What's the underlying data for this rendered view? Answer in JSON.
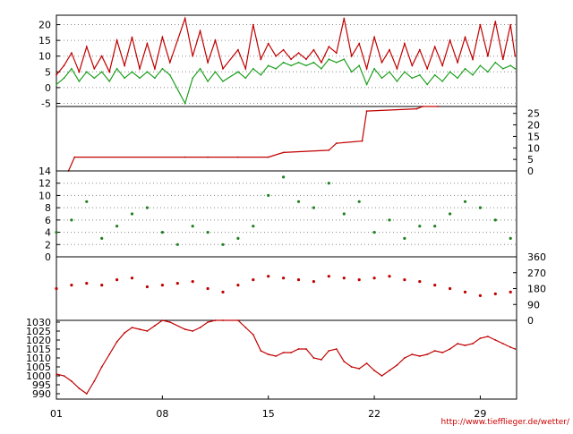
{
  "chart_data": [
    {
      "type": "line",
      "title": "",
      "xlabel": "",
      "ylabel": "",
      "ylim": [
        -6,
        23
      ],
      "yticks": [
        -5,
        0,
        5,
        10,
        15,
        20
      ],
      "yaxis_side": "left",
      "grid": "horizontal dotted",
      "series": [
        {
          "color": "#c00000",
          "x": [
            1,
            1.5,
            2,
            2.5,
            3,
            3.5,
            4,
            4.5,
            5,
            5.5,
            6,
            6.5,
            7,
            7.5,
            8,
            8.5,
            9.5,
            10,
            10.5,
            11,
            11.5,
            12,
            13,
            13.5,
            14,
            14.5,
            15,
            15.5,
            16,
            16.5,
            17,
            17.5,
            18,
            18.5,
            19,
            19.5,
            20,
            20.5,
            21,
            21.5,
            22,
            22.5,
            23,
            23.5,
            24,
            24.5,
            25,
            25.5,
            26,
            26.5,
            27,
            27.5,
            28,
            28.5,
            29,
            29.5,
            30,
            30.5,
            31,
            31.3
          ],
          "values": [
            4,
            7,
            11,
            5,
            13,
            6,
            10,
            5,
            15,
            7,
            16,
            6,
            14,
            6,
            16,
            8,
            22,
            10,
            18,
            8,
            15,
            6,
            12,
            6,
            20,
            9,
            14,
            10,
            12,
            9,
            11,
            9,
            12,
            8,
            13,
            11,
            22,
            10,
            14,
            6,
            16,
            8,
            12,
            6,
            14,
            7,
            12,
            6,
            13,
            7,
            15,
            8,
            16,
            9,
            20,
            10,
            21,
            9,
            20,
            10
          ]
        },
        {
          "color": "#20a020",
          "x": [
            1,
            1.5,
            2,
            2.5,
            3,
            3.5,
            4,
            4.5,
            5,
            5.5,
            6,
            6.5,
            7,
            7.5,
            8,
            8.5,
            9.5,
            10,
            10.5,
            11,
            11.5,
            12,
            13,
            13.5,
            14,
            14.5,
            15,
            15.5,
            16,
            16.5,
            17,
            17.5,
            18,
            18.5,
            19,
            19.5,
            20,
            20.5,
            21,
            21.5,
            22,
            22.5,
            23,
            23.5,
            24,
            24.5,
            25,
            25.5,
            26,
            26.5,
            27,
            27.5,
            28,
            28.5,
            29,
            29.5,
            30,
            30.5,
            31,
            31.3
          ],
          "values": [
            1,
            3,
            6,
            2,
            5,
            3,
            5,
            2,
            6,
            3,
            5,
            3,
            5,
            3,
            6,
            4,
            -5,
            3,
            6,
            2,
            5,
            2,
            5,
            3,
            6,
            4,
            7,
            6,
            8,
            7,
            8,
            7,
            8,
            6,
            9,
            8,
            9,
            5,
            7,
            1,
            6,
            3,
            5,
            2,
            5,
            3,
            4,
            1,
            4,
            2,
            5,
            3,
            6,
            4,
            7,
            5,
            8,
            6,
            7,
            6
          ]
        }
      ]
    },
    {
      "type": "line",
      "title": "",
      "xlabel": "",
      "ylabel": "",
      "ylim": [
        0,
        28
      ],
      "yticks": [
        0,
        5,
        10,
        15,
        20,
        25
      ],
      "yaxis_side": "right",
      "grid": "none",
      "series": [
        {
          "color": "#c00000",
          "x": [
            1.8,
            2.2,
            9.5,
            11.0,
            13.0,
            15.0,
            16.0,
            19.0,
            19.5,
            21.2,
            21.5,
            24.8,
            25.2,
            26.2
          ],
          "values": [
            0,
            6,
            6,
            6,
            6,
            6,
            8,
            9,
            12,
            13,
            26,
            27,
            28,
            28
          ]
        }
      ]
    },
    {
      "type": "scatter",
      "title": "",
      "xlabel": "",
      "ylabel": "",
      "ylim": [
        0,
        14
      ],
      "yticks": [
        0,
        2,
        4,
        6,
        8,
        10,
        12,
        14
      ],
      "yaxis_side": "left",
      "grid": "horizontal dotted",
      "series": [
        {
          "color": "#208020",
          "x": [
            1,
            2,
            3,
            4,
            5,
            6,
            7,
            8,
            9,
            10,
            11,
            12,
            13,
            14,
            15,
            16,
            17,
            18,
            19,
            20,
            21,
            22,
            23,
            24,
            25,
            26,
            27,
            28,
            29,
            30,
            31
          ],
          "values": [
            4,
            6,
            9,
            3,
            5,
            7,
            8,
            4,
            2,
            5,
            4,
            2,
            3,
            5,
            10,
            13,
            9,
            8,
            12,
            7,
            9,
            4,
            6,
            3,
            5,
            5,
            7,
            9,
            8,
            6,
            3
          ]
        }
      ]
    },
    {
      "type": "scatter",
      "title": "",
      "xlabel": "",
      "ylabel": "",
      "ylim": [
        0,
        360
      ],
      "yticks": [
        0,
        90,
        180,
        270,
        360
      ],
      "yaxis_side": "right",
      "grid": "none",
      "series": [
        {
          "color": "#c00000",
          "x": [
            1,
            2,
            3,
            4,
            5,
            6,
            7,
            8,
            9,
            10,
            11,
            12,
            13,
            14,
            15,
            16,
            17,
            18,
            19,
            20,
            21,
            22,
            23,
            24,
            25,
            26,
            27,
            28,
            29,
            30,
            31
          ],
          "values": [
            180,
            200,
            210,
            200,
            230,
            240,
            190,
            200,
            210,
            220,
            180,
            160,
            200,
            230,
            250,
            240,
            230,
            220,
            250,
            240,
            230,
            240,
            250,
            230,
            220,
            200,
            180,
            160,
            140,
            150,
            160
          ]
        }
      ]
    },
    {
      "type": "line",
      "title": "",
      "xlabel": "",
      "ylabel": "",
      "ylim": [
        987,
        1031
      ],
      "yticks": [
        990,
        995,
        1000,
        1005,
        1010,
        1015,
        1020,
        1025,
        1030
      ],
      "yaxis_side": "left",
      "grid": "none",
      "categories": [
        "01",
        "08",
        "15",
        "22",
        "29"
      ],
      "series": [
        {
          "color": "#c00000",
          "x": [
            1,
            1.5,
            2,
            2.5,
            3,
            3.5,
            4,
            4.5,
            5,
            5.5,
            6,
            6.5,
            7,
            7.5,
            8,
            8.5,
            9.5,
            10,
            10.5,
            11,
            11.5,
            12,
            13,
            13.5,
            14,
            14.5,
            15,
            15.5,
            16,
            16.5,
            17,
            17.5,
            18,
            18.5,
            19,
            19.5,
            20,
            20.5,
            21,
            21.5,
            22,
            22.5,
            23,
            23.5,
            24,
            24.5,
            25,
            25.5,
            26,
            26.5,
            27,
            27.5,
            28,
            28.5,
            29,
            29.5,
            30,
            30.5,
            31,
            31.3
          ],
          "values": [
            1001,
            1000,
            997,
            993,
            990,
            997,
            1005,
            1012,
            1019,
            1024,
            1027,
            1026,
            1025,
            1028,
            1031,
            1030,
            1026,
            1025,
            1027,
            1030,
            1031,
            1031,
            1031,
            1027,
            1023,
            1014,
            1012,
            1011,
            1013,
            1013,
            1015,
            1015,
            1010,
            1009,
            1014,
            1015,
            1008,
            1005,
            1004,
            1007,
            1003,
            1000,
            1003,
            1006,
            1010,
            1012,
            1011,
            1012,
            1014,
            1013,
            1015,
            1018,
            1017,
            1018,
            1021,
            1022,
            1020,
            1018,
            1016,
            1015
          ]
        }
      ]
    }
  ],
  "credit": "http://www.tiefflieger.de/wetter/"
}
